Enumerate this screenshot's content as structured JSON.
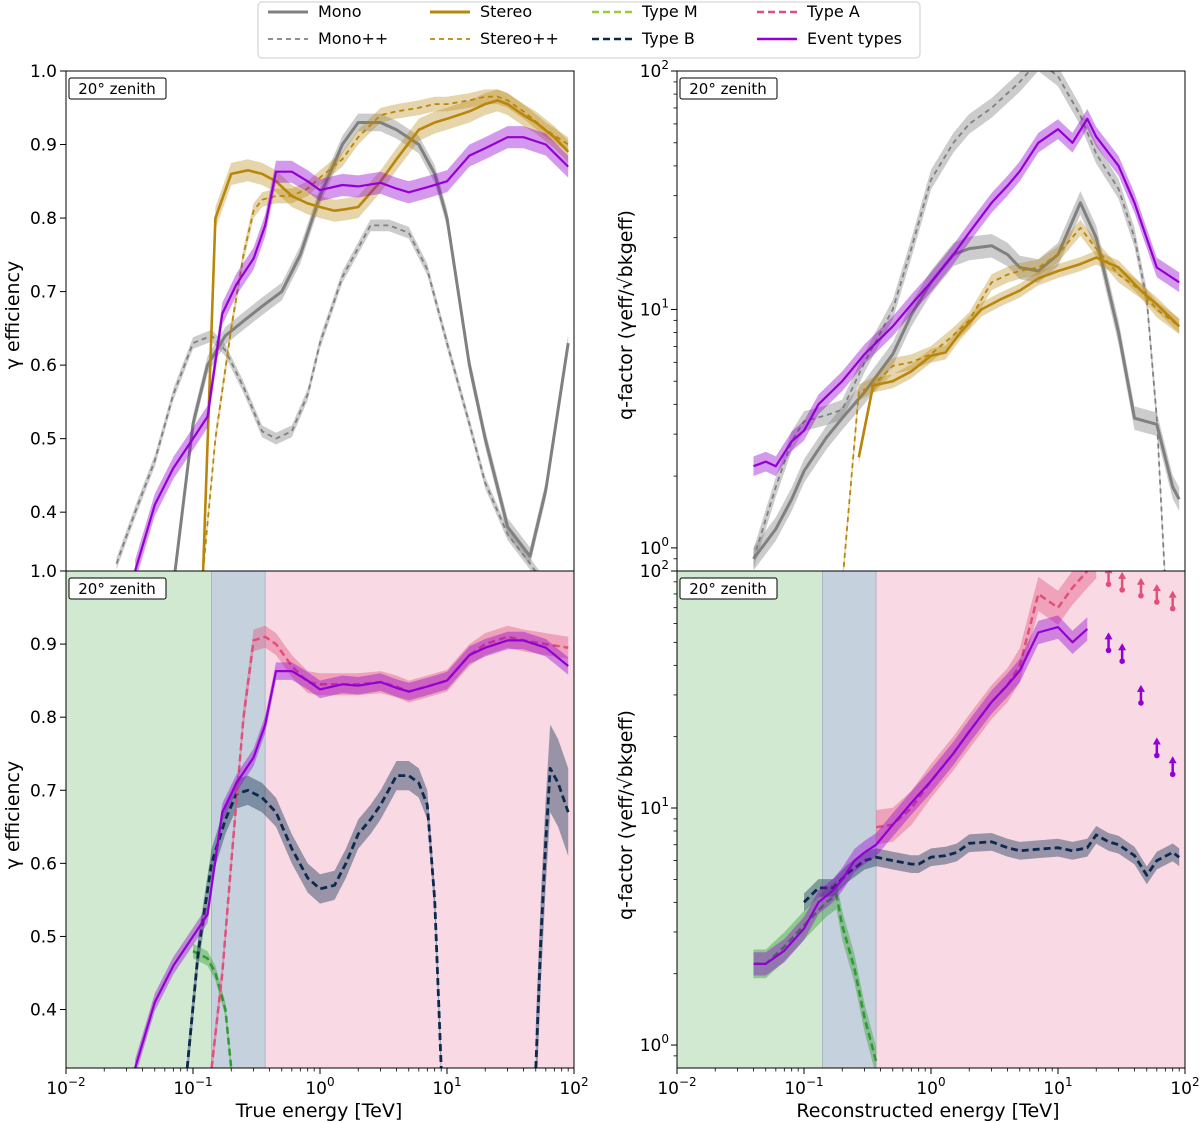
{
  "legend": {
    "entries": [
      {
        "label": "Mono",
        "color": "#808080",
        "dash": "solid",
        "width": 3
      },
      {
        "label": "Mono++",
        "color": "#808080",
        "dash": "dashed",
        "width": 1.8
      },
      {
        "label": "Stereo",
        "color": "#b8860b",
        "dash": "solid",
        "width": 3
      },
      {
        "label": "Stereo++",
        "color": "#b8860b",
        "dash": "dashed",
        "width": 1.8
      },
      {
        "label": "Type M",
        "color": "#9acd32",
        "dash": "dashed",
        "width": 2.5
      },
      {
        "label": "Type B",
        "color": "#0b2a4e",
        "dash": "dashed",
        "width": 2.5
      },
      {
        "label": "Type A",
        "color": "#e0507a",
        "dash": "dashed",
        "width": 2.5
      },
      {
        "label": "Event types",
        "color": "#9400d3",
        "dash": "solid",
        "width": 2.5
      }
    ]
  },
  "labels": {
    "ylabel_eff": "γ efficiency",
    "ylabel_q": "q-factor (γeff/√bkgeff)",
    "xlabel_left": "True energy [TeV]",
    "xlabel_right": "Reconstructed energy [TeV]",
    "zenith": "20° zenith"
  },
  "colors": {
    "mono": "#808080",
    "stereo": "#b8860b",
    "typeM": "#2e9b2e",
    "typeB": "#0b2a4e",
    "typeA": "#e0507a",
    "event": "#9400d3",
    "region_M": "#d1e8d1",
    "region_B": "#c6d1de",
    "region_A": "#f8d9e4"
  },
  "chart_data": [
    {
      "type": "line",
      "panel": "top-left",
      "xscale": "log",
      "xlim": [
        0.01,
        100
      ],
      "ylim": [
        0.32,
        1.0
      ],
      "yticks": [
        0.4,
        0.5,
        0.6,
        0.7,
        0.8,
        0.9,
        1.0
      ],
      "xlabel": "",
      "ylabel": "γ efficiency",
      "annotation": "20° zenith",
      "series": [
        {
          "name": "Mono",
          "x": [
            0.07,
            0.1,
            0.13,
            0.18,
            0.25,
            0.35,
            0.5,
            0.7,
            1.0,
            1.5,
            2.0,
            3.0,
            4.0,
            6.0,
            8.0,
            10,
            15,
            20,
            30,
            45,
            60,
            90
          ],
          "y": [
            0.3,
            0.52,
            0.6,
            0.64,
            0.66,
            0.68,
            0.7,
            0.75,
            0.83,
            0.9,
            0.93,
            0.93,
            0.92,
            0.9,
            0.86,
            0.8,
            0.6,
            0.5,
            0.38,
            0.34,
            0.43,
            0.63
          ],
          "band": 0.012
        },
        {
          "name": "Mono++",
          "x": [
            0.025,
            0.035,
            0.05,
            0.07,
            0.1,
            0.14,
            0.18,
            0.25,
            0.35,
            0.45,
            0.6,
            0.8,
            1.0,
            1.5,
            2.5,
            3.5,
            5.0,
            7.0,
            10,
            15,
            20,
            30,
            45,
            60,
            80
          ],
          "y": [
            0.33,
            0.4,
            0.47,
            0.56,
            0.63,
            0.64,
            0.62,
            0.57,
            0.51,
            0.5,
            0.51,
            0.56,
            0.63,
            0.72,
            0.79,
            0.79,
            0.78,
            0.73,
            0.63,
            0.52,
            0.44,
            0.37,
            0.33,
            0.3,
            0.28
          ],
          "band": 0.008
        },
        {
          "name": "Stereo",
          "x": [
            0.12,
            0.15,
            0.2,
            0.27,
            0.35,
            0.45,
            0.6,
            0.8,
            1.0,
            1.3,
            1.6,
            2.0,
            3.0,
            4.0,
            6.0,
            8.0,
            10,
            15,
            20,
            25,
            30,
            40,
            50,
            70,
            90
          ],
          "y": [
            0.32,
            0.8,
            0.86,
            0.865,
            0.86,
            0.85,
            0.83,
            0.82,
            0.815,
            0.81,
            0.812,
            0.815,
            0.85,
            0.88,
            0.92,
            0.93,
            0.935,
            0.945,
            0.955,
            0.96,
            0.955,
            0.94,
            0.93,
            0.91,
            0.89
          ],
          "band": 0.015
        },
        {
          "name": "Stereo++",
          "x": [
            0.12,
            0.15,
            0.2,
            0.25,
            0.3,
            0.35,
            0.45,
            0.6,
            0.8,
            1.0,
            1.5,
            2.0,
            3.0,
            4.0,
            6.0,
            8.0,
            10,
            15,
            20,
            25,
            30,
            40,
            60,
            90
          ],
          "y": [
            0.32,
            0.5,
            0.65,
            0.75,
            0.81,
            0.825,
            0.83,
            0.83,
            0.84,
            0.855,
            0.88,
            0.91,
            0.94,
            0.945,
            0.95,
            0.955,
            0.955,
            0.96,
            0.965,
            0.965,
            0.96,
            0.945,
            0.92,
            0.9
          ],
          "band": 0.01
        },
        {
          "name": "Event types",
          "x": [
            0.035,
            0.05,
            0.07,
            0.1,
            0.13,
            0.17,
            0.22,
            0.3,
            0.37,
            0.45,
            0.6,
            0.8,
            1.0,
            1.5,
            2.0,
            3.0,
            4.0,
            5.0,
            7.0,
            10,
            15,
            20,
            30,
            40,
            60,
            90
          ],
          "y": [
            0.32,
            0.41,
            0.46,
            0.5,
            0.53,
            0.67,
            0.71,
            0.745,
            0.79,
            0.863,
            0.863,
            0.85,
            0.838,
            0.845,
            0.843,
            0.848,
            0.84,
            0.835,
            0.842,
            0.85,
            0.885,
            0.895,
            0.91,
            0.91,
            0.9,
            0.87
          ],
          "band": 0.015
        }
      ]
    },
    {
      "type": "line",
      "panel": "top-right",
      "xscale": "log",
      "xlim": [
        0.01,
        100
      ],
      "yscale": "log",
      "ylim": [
        0.8,
        100
      ],
      "xlabel": "",
      "ylabel": "q-factor (γeff/√bkgeff)",
      "annotation": "20° zenith",
      "series": [
        {
          "name": "Mono",
          "x": [
            0.04,
            0.06,
            0.08,
            0.1,
            0.15,
            0.2,
            0.3,
            0.5,
            0.7,
            1.0,
            1.5,
            2.0,
            3.0,
            4.0,
            5.0,
            7.0,
            10,
            15,
            20,
            30,
            40,
            60,
            80,
            90
          ],
          "y": [
            0.9,
            1.2,
            1.6,
            2.1,
            2.9,
            3.5,
            4.5,
            6.5,
            9.5,
            13,
            17,
            18,
            18.5,
            17,
            15,
            14.5,
            17,
            28,
            20,
            8,
            3.5,
            3.3,
            1.8,
            1.6
          ],
          "band_frac": 0.12
        },
        {
          "name": "Mono++",
          "x": [
            0.04,
            0.06,
            0.08,
            0.1,
            0.15,
            0.2,
            0.3,
            0.5,
            0.7,
            1.0,
            1.5,
            2.0,
            3.0,
            5.0,
            7.0,
            10,
            15,
            20,
            30,
            40,
            50,
            60,
            70
          ],
          "y": [
            0.9,
            1.8,
            2.8,
            3.4,
            3.6,
            3.8,
            6,
            10,
            18,
            35,
            50,
            60,
            70,
            90,
            110,
            95,
            65,
            45,
            32,
            20,
            11,
            3.5,
            0.7
          ],
          "band_frac": 0.1
        },
        {
          "name": "Stereo",
          "x": [
            0.27,
            0.35,
            0.5,
            0.7,
            1.0,
            1.3,
            1.7,
            2.5,
            3.5,
            5.0,
            7.0,
            10,
            15,
            20,
            30,
            45,
            60,
            90
          ],
          "y": [
            2.4,
            4.8,
            5,
            5.5,
            6.4,
            6.6,
            8,
            10,
            11,
            12,
            13.5,
            14.5,
            15.5,
            16.5,
            15,
            12,
            10.5,
            8.5
          ],
          "band_frac": 0.07
        },
        {
          "name": "Stereo++",
          "x": [
            0.2,
            0.27,
            0.35,
            0.5,
            0.7,
            1.0,
            1.5,
            2.0,
            3.0,
            4.0,
            5.0,
            7.0,
            10,
            15,
            20,
            30,
            45,
            60,
            90
          ],
          "y": [
            0.7,
            4.5,
            4.8,
            5.8,
            6,
            6.5,
            7.8,
            9,
            13,
            14,
            14.5,
            15,
            17,
            22,
            18,
            14,
            12,
            10,
            8.5
          ],
          "band_frac": 0.08
        },
        {
          "name": "Event types",
          "x": [
            0.04,
            0.05,
            0.06,
            0.08,
            0.1,
            0.13,
            0.2,
            0.3,
            0.5,
            0.7,
            1.0,
            1.5,
            2.0,
            3.0,
            4.0,
            5.0,
            7.0,
            10,
            13,
            17,
            20,
            30,
            40,
            60,
            90
          ],
          "y": [
            2.2,
            2.3,
            2.2,
            2.8,
            3.1,
            4,
            5,
            6.5,
            8.5,
            10.5,
            13,
            17,
            21,
            28,
            33,
            38,
            50,
            57,
            50,
            63,
            53,
            40,
            28,
            15,
            13
          ],
          "band_frac": 0.1
        }
      ]
    },
    {
      "type": "line",
      "panel": "bottom-left",
      "xscale": "log",
      "xlim": [
        0.01,
        100
      ],
      "ylim": [
        0.32,
        1.0
      ],
      "xlabel": "True energy [TeV]",
      "ylabel": "γ efficiency",
      "annotation": "20° zenith",
      "regions": [
        {
          "name": "Type M",
          "x0": 0.01,
          "x1": 0.14
        },
        {
          "name": "Type B",
          "x0": 0.14,
          "x1": 0.37
        },
        {
          "name": "Type A",
          "x0": 0.37,
          "x1": 100
        }
      ],
      "series": [
        {
          "name": "Type M",
          "x": [
            0.1,
            0.13,
            0.15,
            0.18,
            0.2
          ],
          "y": [
            0.48,
            0.47,
            0.45,
            0.4,
            0.32
          ],
          "band": 0.01
        },
        {
          "name": "Type B",
          "x": [
            0.09,
            0.11,
            0.14,
            0.18,
            0.22,
            0.27,
            0.35,
            0.45,
            0.6,
            0.8,
            1.0,
            1.3,
            1.6,
            2.0,
            2.5,
            3.0,
            4.0,
            5.0,
            6.0,
            7.0,
            8.0,
            9.0
          ],
          "y": [
            0.32,
            0.48,
            0.6,
            0.66,
            0.695,
            0.7,
            0.69,
            0.67,
            0.62,
            0.58,
            0.565,
            0.57,
            0.6,
            0.64,
            0.66,
            0.68,
            0.72,
            0.72,
            0.71,
            0.68,
            0.55,
            0.32
          ],
          "band": 0.02
        },
        {
          "name": "Type B",
          "x": [
            50,
            55,
            60,
            65,
            75,
            90
          ],
          "y": [
            0.32,
            0.5,
            0.63,
            0.73,
            0.71,
            0.67
          ],
          "band": 0.06
        },
        {
          "name": "Type A",
          "x": [
            0.14,
            0.17,
            0.2,
            0.25,
            0.3,
            0.37,
            0.45,
            0.6,
            0.8,
            1.0,
            1.5,
            2.0,
            3.0,
            4.0,
            5.0,
            7.0,
            10,
            15,
            20,
            30,
            40,
            60,
            90
          ],
          "y": [
            0.32,
            0.45,
            0.6,
            0.8,
            0.905,
            0.91,
            0.9,
            0.87,
            0.848,
            0.845,
            0.845,
            0.845,
            0.848,
            0.842,
            0.835,
            0.842,
            0.85,
            0.885,
            0.9,
            0.91,
            0.905,
            0.9,
            0.895
          ],
          "band": 0.015
        },
        {
          "name": "Event types",
          "x": [
            0.035,
            0.05,
            0.07,
            0.1,
            0.13,
            0.17,
            0.22,
            0.3,
            0.37,
            0.45,
            0.6,
            0.8,
            1.0,
            1.5,
            2.0,
            3.0,
            4.0,
            5.0,
            7.0,
            10,
            15,
            20,
            30,
            40,
            60,
            90
          ],
          "y": [
            0.32,
            0.41,
            0.46,
            0.5,
            0.53,
            0.67,
            0.71,
            0.745,
            0.79,
            0.863,
            0.863,
            0.85,
            0.838,
            0.845,
            0.843,
            0.848,
            0.84,
            0.835,
            0.842,
            0.85,
            0.885,
            0.895,
            0.905,
            0.905,
            0.895,
            0.87
          ],
          "band": 0.012
        }
      ]
    },
    {
      "type": "line",
      "panel": "bottom-right",
      "xscale": "log",
      "xlim": [
        0.01,
        100
      ],
      "yscale": "log",
      "ylim": [
        0.8,
        100
      ],
      "xlabel": "Reconstructed energy [TeV]",
      "ylabel": "q-factor (γeff/√bkgeff)",
      "annotation": "20° zenith",
      "regions": [
        {
          "name": "Type M",
          "x0": 0.01,
          "x1": 0.14
        },
        {
          "name": "Type B",
          "x0": 0.14,
          "x1": 0.37
        },
        {
          "name": "Type A",
          "x0": 0.37,
          "x1": 100
        }
      ],
      "series": [
        {
          "name": "Type M",
          "x": [
            0.04,
            0.05,
            0.07,
            0.1,
            0.13,
            0.15,
            0.18,
            0.2,
            0.25,
            0.3,
            0.37
          ],
          "y": [
            2.2,
            2.2,
            2.6,
            3.2,
            3.7,
            4.0,
            4.3,
            3.2,
            2.1,
            1.3,
            0.85
          ],
          "band_frac": 0.15
        },
        {
          "name": "Type B",
          "x": [
            0.1,
            0.13,
            0.17,
            0.22,
            0.3,
            0.37,
            0.5,
            0.7,
            0.8,
            1.0,
            1.3,
            1.6,
            2.0,
            3.0,
            4.0,
            5.0,
            7.0,
            10,
            13,
            17,
            20,
            25,
            30,
            40,
            50,
            60,
            80,
            90
          ],
          "y": [
            4.0,
            4.6,
            4.6,
            5.3,
            6,
            6.2,
            6,
            5.8,
            5.8,
            6.2,
            6.3,
            6.5,
            7.1,
            7.2,
            6.8,
            6.6,
            6.7,
            6.8,
            6.6,
            6.8,
            7.7,
            7.2,
            7.0,
            6.3,
            5.2,
            6,
            6.5,
            6.2
          ],
          "band_frac": 0.09
        },
        {
          "name": "Type A",
          "x": [
            0.37,
            0.5,
            0.7,
            1.0,
            1.5,
            2.0,
            3.0,
            4.0,
            5.0,
            7.0,
            10,
            13,
            17,
            20
          ],
          "y": [
            8.3,
            8.5,
            10,
            13,
            17,
            21,
            28,
            33,
            40,
            80,
            70,
            85,
            100,
            110
          ],
          "band_frac": 0.18
        },
        {
          "name": "Event types",
          "x": [
            0.04,
            0.05,
            0.07,
            0.1,
            0.13,
            0.17,
            0.2,
            0.25,
            0.3,
            0.37,
            0.5,
            0.7,
            1.0,
            1.5,
            2.0,
            3.0,
            4.0,
            5.0,
            7.0,
            10,
            13,
            17
          ],
          "y": [
            2.2,
            2.2,
            2.5,
            3.1,
            4,
            4.5,
            5,
            6,
            6.5,
            7,
            8.5,
            10.5,
            13,
            17,
            21,
            28,
            33,
            38,
            55,
            58,
            50,
            57
          ],
          "band_frac": 0.12
        },
        {
          "name": "Type A lower limits",
          "x": [
            25,
            32,
            45,
            60,
            80
          ],
          "y": [
            95,
            90,
            85,
            80,
            75
          ]
        },
        {
          "name": "Event types lower limits",
          "x": [
            25,
            32,
            45,
            60,
            80
          ],
          "y": [
            50,
            45,
            30,
            18,
            15
          ]
        }
      ]
    }
  ]
}
